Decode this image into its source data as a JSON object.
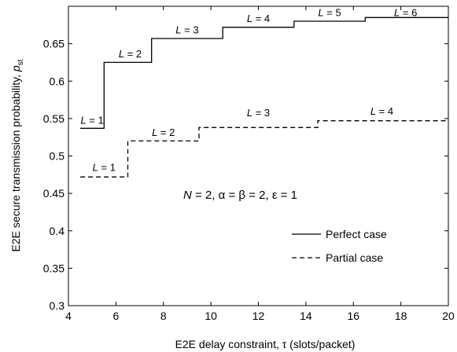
{
  "chart_data": {
    "type": "line",
    "step": true,
    "xlabel_prefix": "E2E delay constraint, ",
    "xlabel_tau": "τ",
    "xlabel_suffix": " (slots/packet)",
    "ylabel_prefix": "E2E secure transmission probability, ",
    "ylabel_p": "p",
    "ylabel_sub": "st",
    "xlim": [
      4,
      20
    ],
    "ylim": [
      0.3,
      0.7
    ],
    "xticks": [
      4,
      6,
      8,
      10,
      12,
      14,
      16,
      18,
      20
    ],
    "yticks": [
      0.3,
      0.35,
      0.4,
      0.45,
      0.5,
      0.55,
      0.6,
      0.65
    ],
    "yticks_labels": [
      "0.3",
      "0.35",
      "0.4",
      "0.45",
      "0.5",
      "0.55",
      "0.6",
      "0.65"
    ],
    "param_text": "N = 2, α = β = 2, ε = 1",
    "param_parts": {
      "N": "N",
      "eq1": " = 2, ",
      "alpha": "α",
      "eq2": " = ",
      "beta": "β",
      "eq3": " = 2, ",
      "eps": "ε",
      "eq4": " = 1"
    },
    "legend_position": "lower-right",
    "series": [
      {
        "name": "Perfect case",
        "style": "solid",
        "color": "#000000",
        "x": [
          4.5,
          5.5,
          5.5,
          7.5,
          7.5,
          10.5,
          10.5,
          13.5,
          13.5,
          16.5,
          16.5,
          20
        ],
        "y": [
          0.537,
          0.537,
          0.625,
          0.625,
          0.657,
          0.657,
          0.672,
          0.672,
          0.68,
          0.68,
          0.685,
          0.685
        ],
        "labels": [
          {
            "L": "1",
            "x": 5.0,
            "y": 0.543
          },
          {
            "L": "2",
            "x": 6.6,
            "y": 0.632
          },
          {
            "L": "3",
            "x": 9.0,
            "y": 0.664
          },
          {
            "L": "4",
            "x": 12.0,
            "y": 0.679
          },
          {
            "L": "5",
            "x": 15.0,
            "y": 0.687
          },
          {
            "L": "6",
            "x": 18.2,
            "y": 0.687
          }
        ]
      },
      {
        "name": "Partial case",
        "style": "dashed",
        "color": "#000000",
        "x": [
          4.5,
          6.5,
          6.5,
          9.5,
          9.5,
          14.5,
          14.5,
          20
        ],
        "y": [
          0.472,
          0.472,
          0.52,
          0.52,
          0.538,
          0.538,
          0.547,
          0.547
        ],
        "labels": [
          {
            "L": "1",
            "x": 5.5,
            "y": 0.48
          },
          {
            "L": "2",
            "x": 8.0,
            "y": 0.527
          },
          {
            "L": "3",
            "x": 12.0,
            "y": 0.553
          },
          {
            "L": "4",
            "x": 17.2,
            "y": 0.555
          }
        ]
      }
    ],
    "label_prefix": "L",
    "label_eq": " = "
  }
}
